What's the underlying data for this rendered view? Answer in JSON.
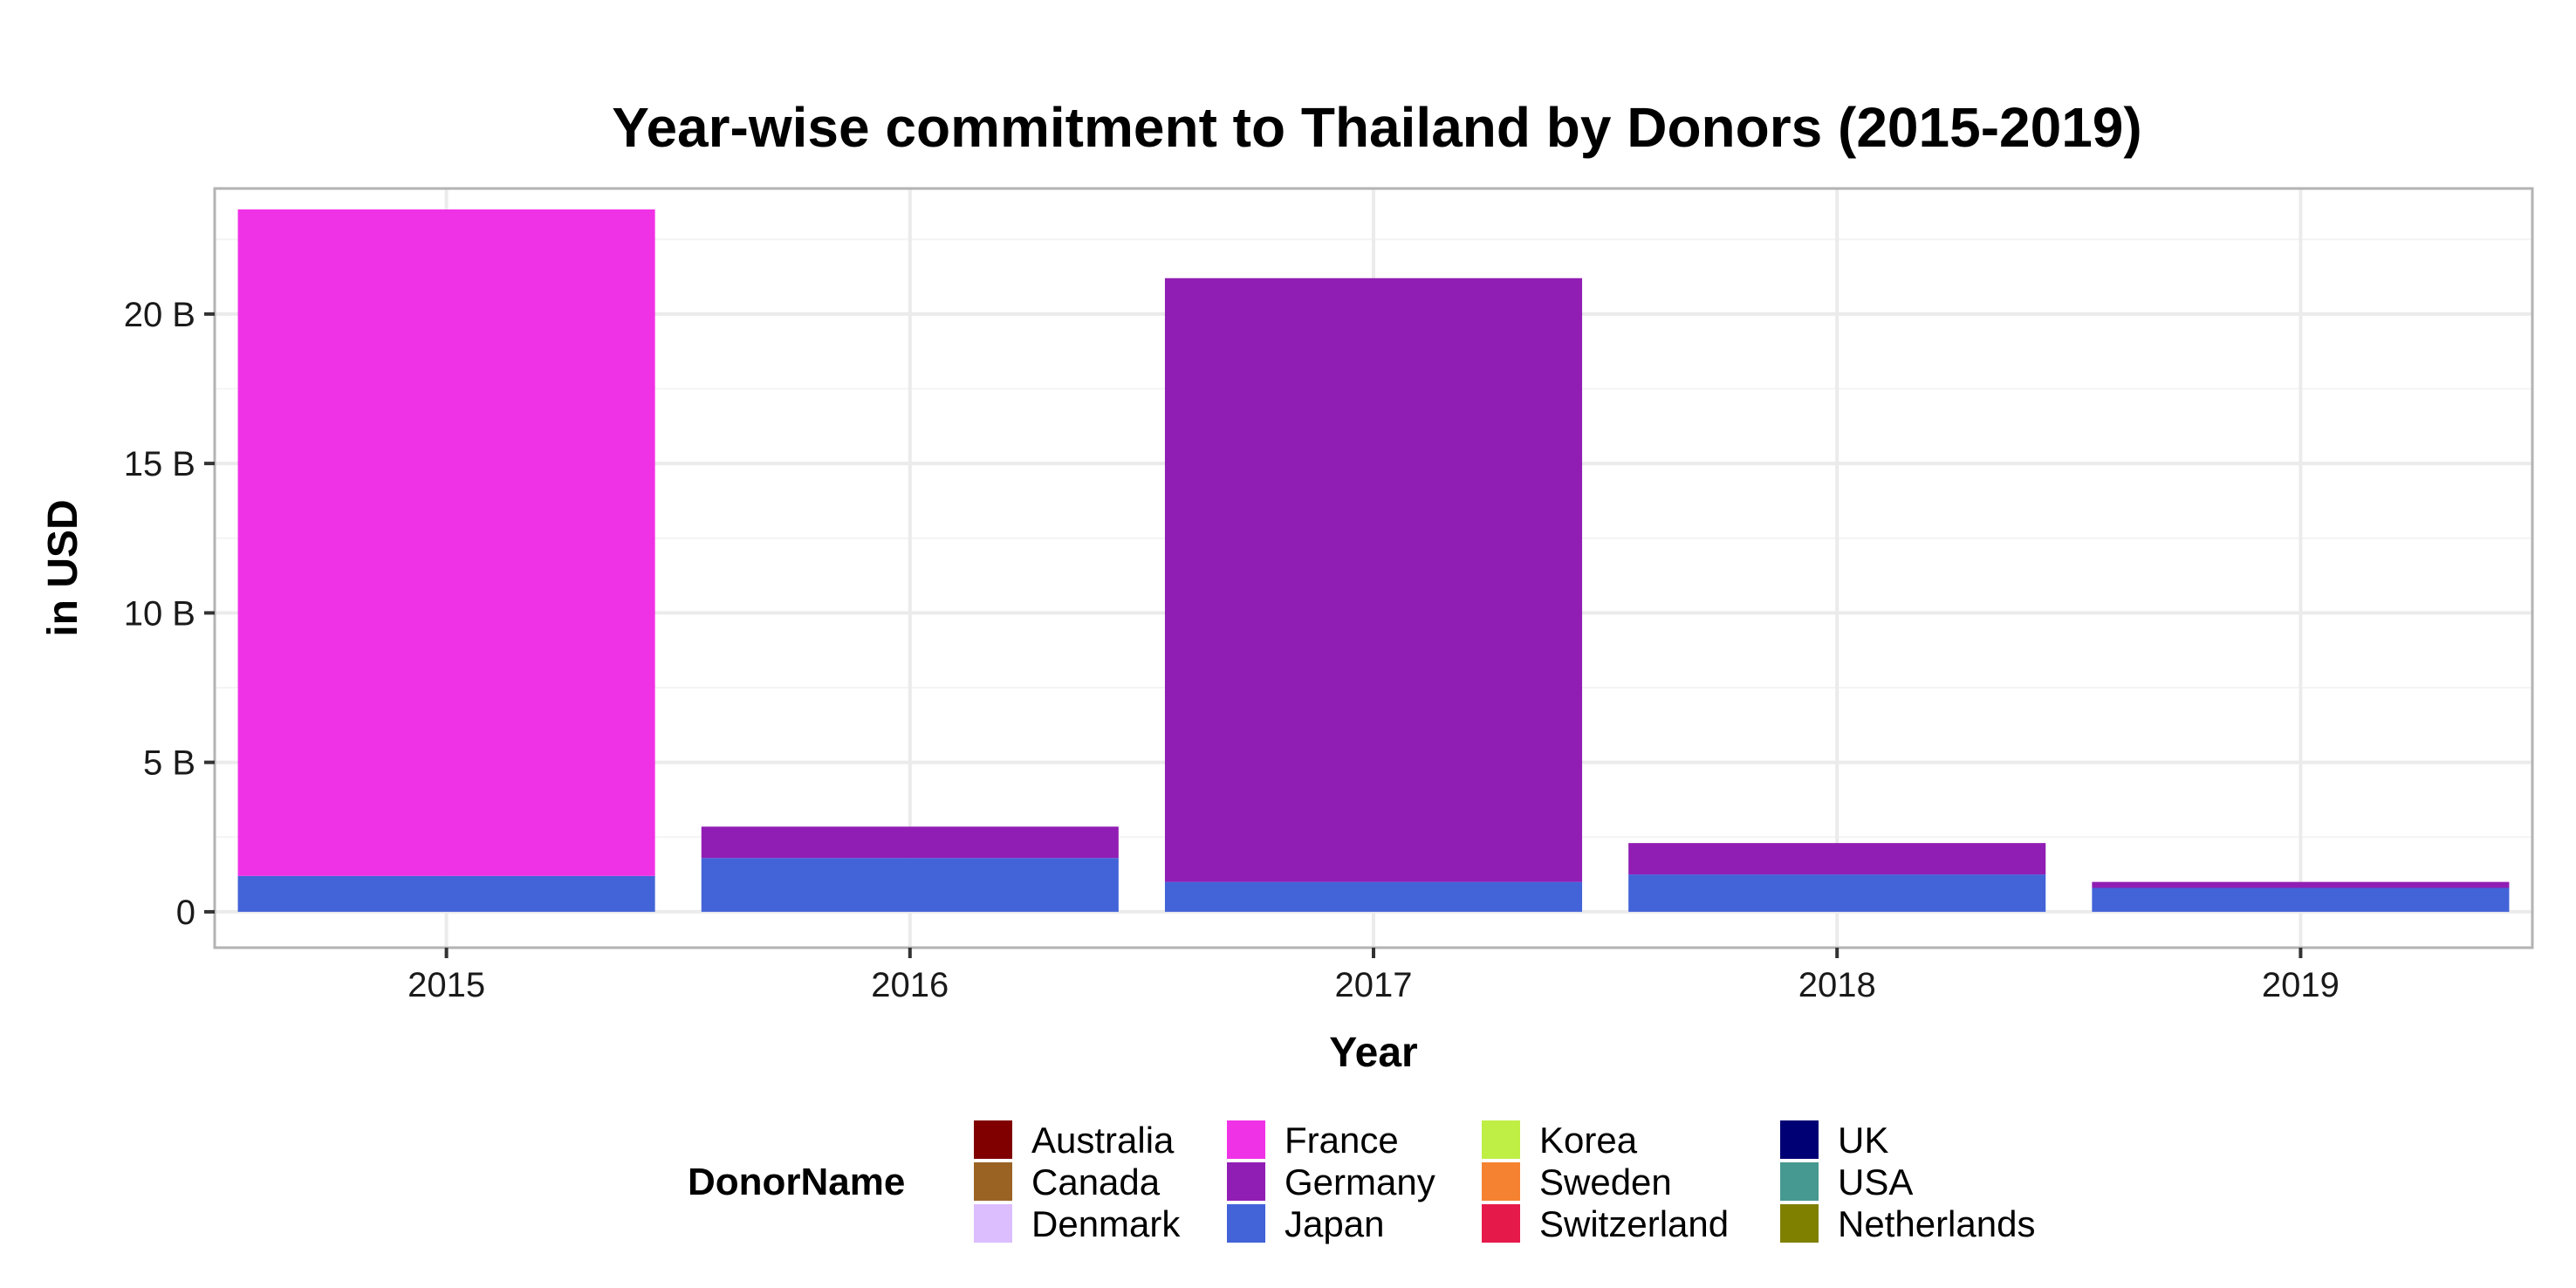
{
  "chart_data": {
    "type": "bar",
    "stacked": true,
    "title": "Year-wise commitment to Thailand by Donors (2015-2019)",
    "xlabel": "Year",
    "ylabel": "in USD",
    "ylim": [
      -1.2,
      24.2
    ],
    "y_unit": "B USD",
    "y_ticks": [
      {
        "value": 0,
        "label": "0"
      },
      {
        "value": 5,
        "label": "5 B"
      },
      {
        "value": 10,
        "label": "10 B"
      },
      {
        "value": 15,
        "label": "15 B"
      },
      {
        "value": 20,
        "label": "20 B"
      }
    ],
    "grid": true,
    "categories": [
      "2015",
      "2016",
      "2017",
      "2018",
      "2019"
    ],
    "legend": {
      "title": "DonorName",
      "placement": "bottom",
      "entries": [
        {
          "name": "Australia",
          "color": "#800000"
        },
        {
          "name": "Canada",
          "color": "#9A6324"
        },
        {
          "name": "Denmark",
          "color": "#DCBEFF"
        },
        {
          "name": "France",
          "color": "#F032E6"
        },
        {
          "name": "Germany",
          "color": "#911EB4"
        },
        {
          "name": "Japan",
          "color": "#4363D8"
        },
        {
          "name": "Korea",
          "color": "#BFEF45"
        },
        {
          "name": "Sweden",
          "color": "#F58231"
        },
        {
          "name": "Switzerland",
          "color": "#E6194B"
        },
        {
          "name": "UK",
          "color": "#000075"
        },
        {
          "name": "USA",
          "color": "#469990"
        },
        {
          "name": "Netherlands",
          "color": "#808000"
        }
      ]
    },
    "stack_order": [
      "Japan",
      "Germany",
      "France"
    ],
    "series": [
      {
        "name": "Japan",
        "color": "#4363D8",
        "values": [
          1.2,
          1.8,
          1.0,
          1.25,
          0.8
        ]
      },
      {
        "name": "Germany",
        "color": "#911EB4",
        "values": [
          0,
          1.05,
          20.2,
          1.05,
          0.2
        ]
      },
      {
        "name": "France",
        "color": "#F032E6",
        "values": [
          22.3,
          0,
          0,
          0,
          0
        ]
      }
    ]
  }
}
